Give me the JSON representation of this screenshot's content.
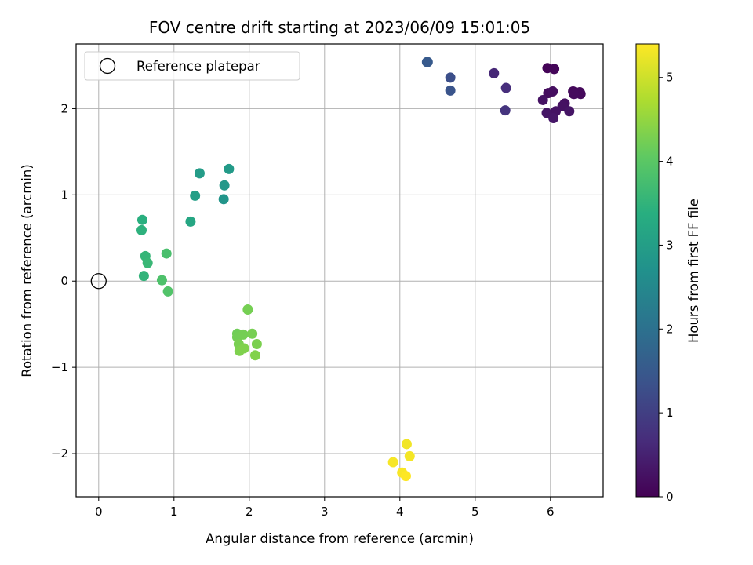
{
  "chart_data": {
    "type": "scatter",
    "title": "FOV centre drift starting at 2023/06/09 15:01:05",
    "xlabel": "Angular distance from reference (arcmin)",
    "ylabel": "Rotation from reference (arcmin)",
    "xlim": [
      -0.3,
      6.7
    ],
    "ylim": [
      -2.5,
      2.75
    ],
    "xticks": [
      0,
      1,
      2,
      3,
      4,
      5,
      6
    ],
    "yticks": [
      -2,
      -1,
      0,
      1,
      2
    ],
    "grid": true,
    "legend": {
      "position": "top-left",
      "entries": [
        "Reference platepar"
      ]
    },
    "reference_point": {
      "x": 0,
      "y": 0,
      "label": "Reference platepar"
    },
    "colorbar": {
      "label": "Hours from first FF file",
      "colormap": "viridis",
      "range": [
        0,
        5.4
      ],
      "ticks": [
        0,
        1,
        2,
        3,
        4,
        5
      ]
    },
    "points": [
      {
        "x": 5.96,
        "y": 2.47,
        "c": 0.05
      },
      {
        "x": 6.05,
        "y": 2.46,
        "c": 0.08
      },
      {
        "x": 6.3,
        "y": 2.2,
        "c": 0.1
      },
      {
        "x": 6.39,
        "y": 2.19,
        "c": 0.12
      },
      {
        "x": 6.4,
        "y": 2.17,
        "c": 0.14
      },
      {
        "x": 6.31,
        "y": 2.17,
        "c": 0.16
      },
      {
        "x": 5.97,
        "y": 2.18,
        "c": 0.18
      },
      {
        "x": 6.03,
        "y": 2.2,
        "c": 0.2
      },
      {
        "x": 6.19,
        "y": 2.06,
        "c": 0.22
      },
      {
        "x": 6.16,
        "y": 2.03,
        "c": 0.24
      },
      {
        "x": 5.9,
        "y": 2.1,
        "c": 0.26
      },
      {
        "x": 6.07,
        "y": 1.97,
        "c": 0.28
      },
      {
        "x": 6.25,
        "y": 1.97,
        "c": 0.3
      },
      {
        "x": 5.95,
        "y": 1.95,
        "c": 0.32
      },
      {
        "x": 6.04,
        "y": 1.89,
        "c": 0.34
      },
      {
        "x": 5.25,
        "y": 2.41,
        "c": 0.6
      },
      {
        "x": 5.41,
        "y": 2.24,
        "c": 0.7
      },
      {
        "x": 5.4,
        "y": 1.98,
        "c": 0.8
      },
      {
        "x": 4.67,
        "y": 2.36,
        "c": 1.3
      },
      {
        "x": 4.67,
        "y": 2.21,
        "c": 1.4
      },
      {
        "x": 4.37,
        "y": 2.54,
        "c": 1.5
      },
      {
        "x": 4.36,
        "y": 2.54,
        "c": 1.52
      },
      {
        "x": 1.73,
        "y": 1.3,
        "c": 2.9
      },
      {
        "x": 1.34,
        "y": 1.25,
        "c": 2.95
      },
      {
        "x": 1.67,
        "y": 1.11,
        "c": 2.85
      },
      {
        "x": 1.28,
        "y": 0.99,
        "c": 3.0
      },
      {
        "x": 1.66,
        "y": 0.95,
        "c": 2.8
      },
      {
        "x": 1.22,
        "y": 0.69,
        "c": 3.2
      },
      {
        "x": 0.58,
        "y": 0.71,
        "c": 3.4
      },
      {
        "x": 0.57,
        "y": 0.59,
        "c": 3.45
      },
      {
        "x": 0.62,
        "y": 0.29,
        "c": 3.55
      },
      {
        "x": 0.65,
        "y": 0.21,
        "c": 3.6
      },
      {
        "x": 0.9,
        "y": 0.32,
        "c": 3.8
      },
      {
        "x": 0.6,
        "y": 0.06,
        "c": 3.5
      },
      {
        "x": 0.84,
        "y": 0.01,
        "c": 3.85
      },
      {
        "x": 0.92,
        "y": -0.12,
        "c": 3.9
      },
      {
        "x": 1.98,
        "y": -0.33,
        "c": 4.25
      },
      {
        "x": 1.84,
        "y": -0.61,
        "c": 4.2
      },
      {
        "x": 1.84,
        "y": -0.65,
        "c": 4.22
      },
      {
        "x": 1.92,
        "y": -0.62,
        "c": 4.24
      },
      {
        "x": 2.04,
        "y": -0.61,
        "c": 4.26
      },
      {
        "x": 1.86,
        "y": -0.73,
        "c": 4.28
      },
      {
        "x": 2.1,
        "y": -0.73,
        "c": 4.3
      },
      {
        "x": 1.87,
        "y": -0.81,
        "c": 4.32
      },
      {
        "x": 1.93,
        "y": -0.78,
        "c": 4.34
      },
      {
        "x": 2.08,
        "y": -0.86,
        "c": 4.36
      },
      {
        "x": 4.09,
        "y": -1.89,
        "c": 5.3
      },
      {
        "x": 4.13,
        "y": -2.03,
        "c": 5.32
      },
      {
        "x": 3.91,
        "y": -2.1,
        "c": 5.34
      },
      {
        "x": 4.03,
        "y": -2.22,
        "c": 5.36
      },
      {
        "x": 4.08,
        "y": -2.26,
        "c": 5.4
      }
    ]
  }
}
